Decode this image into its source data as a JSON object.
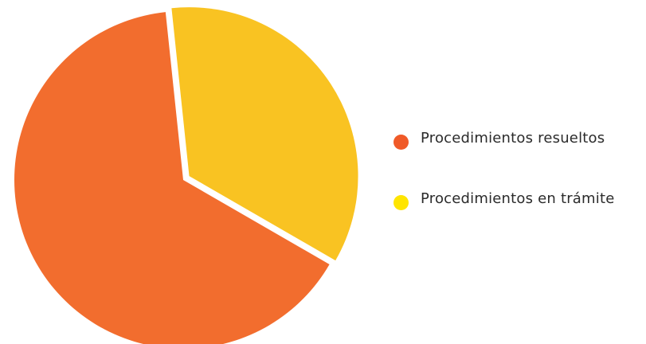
{
  "chart_data": {
    "type": "pie",
    "title": "",
    "slices": [
      {
        "label": "Procedimientos resueltos",
        "value": 65,
        "color": "#f26d2e",
        "legend_color": "#f05a28"
      },
      {
        "label": "Procedimientos en trámite",
        "value": 35,
        "color": "#f9c322",
        "legend_color": "#ffe500"
      }
    ],
    "legend_position": "right",
    "exploded": true
  }
}
